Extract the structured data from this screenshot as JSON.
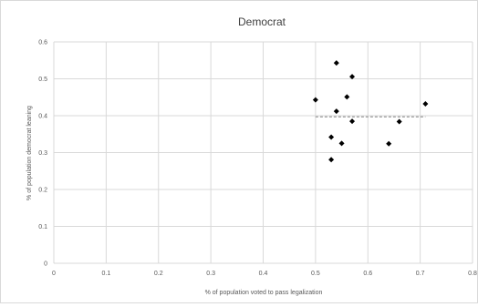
{
  "chart_data": {
    "type": "scatter",
    "title": "Democrat",
    "xlabel": "% of population voted to pass legalization",
    "ylabel": "% of population democrat leaning",
    "xlim": [
      0,
      0.8
    ],
    "ylim": [
      0,
      0.6
    ],
    "x_ticks": [
      0,
      0.1,
      0.2,
      0.3,
      0.4,
      0.5,
      0.6,
      0.7,
      0.8
    ],
    "x_tick_labels": [
      "0",
      "0.1",
      "0.2",
      "0.3",
      "0.4",
      "0.5",
      "0.6",
      "0.7",
      "0.8"
    ],
    "y_ticks": [
      0,
      0.1,
      0.2,
      0.3,
      0.4,
      0.5,
      0.6
    ],
    "y_tick_labels": [
      "0",
      "0.1",
      "0.2",
      "0.3",
      "0.4",
      "0.5",
      "0.6"
    ],
    "grid": true,
    "marker_color": "#000000",
    "trendline": {
      "style": "dashed",
      "color": "#999999",
      "x": [
        0.5,
        0.71
      ],
      "y": [
        0.397,
        0.397
      ]
    },
    "points": [
      {
        "x": 0.5,
        "y": 0.443
      },
      {
        "x": 0.54,
        "y": 0.543
      },
      {
        "x": 0.57,
        "y": 0.506
      },
      {
        "x": 0.56,
        "y": 0.451
      },
      {
        "x": 0.54,
        "y": 0.412
      },
      {
        "x": 0.71,
        "y": 0.432
      },
      {
        "x": 0.57,
        "y": 0.385
      },
      {
        "x": 0.66,
        "y": 0.384
      },
      {
        "x": 0.53,
        "y": 0.342
      },
      {
        "x": 0.55,
        "y": 0.325
      },
      {
        "x": 0.64,
        "y": 0.324
      },
      {
        "x": 0.53,
        "y": 0.281
      }
    ]
  }
}
